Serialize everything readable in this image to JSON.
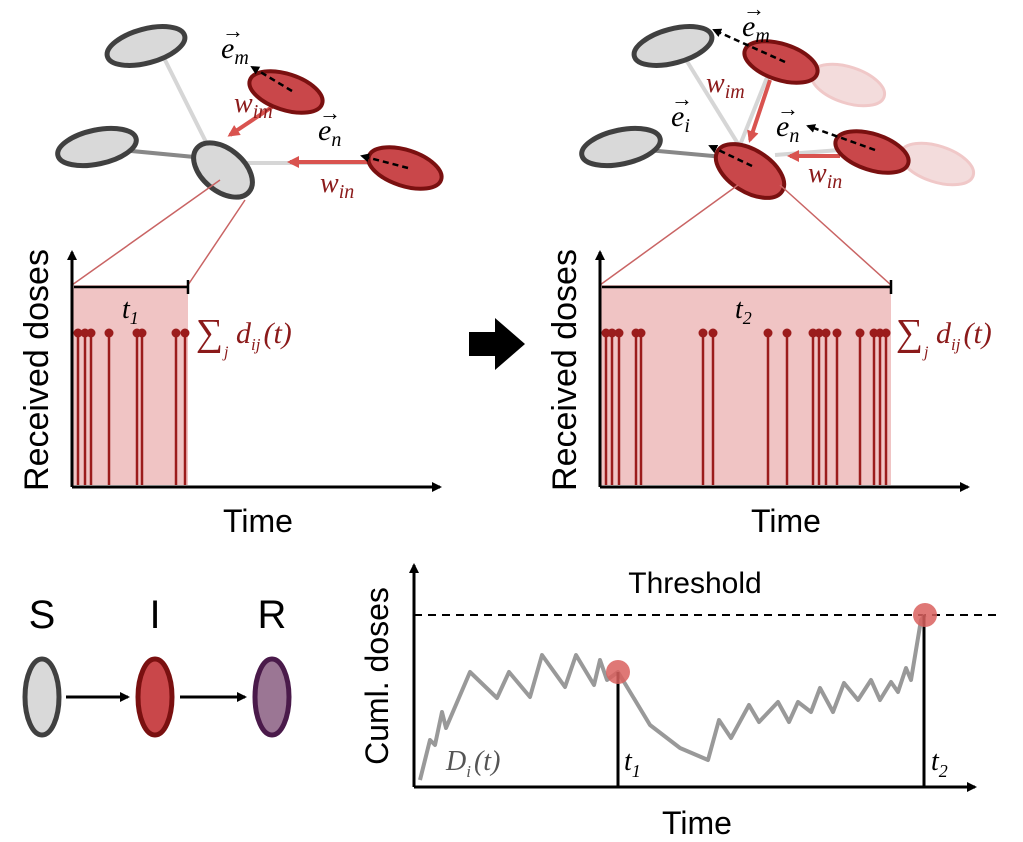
{
  "network": {
    "e_m": "e",
    "e_m_sub": "m",
    "e_n": "e",
    "e_n_sub": "n",
    "e_i": "e",
    "e_i_sub": "i",
    "w": "w",
    "w_im_sub": "im",
    "w_in_sub": "in"
  },
  "dose_plot_left": {
    "ylabel": "Received doses",
    "xlabel": "Time",
    "window_label": "t",
    "window_sub": "1",
    "sum_label": "d",
    "sum_sub_j": "j",
    "sum_sub_ij": "ij",
    "sum_arg": "(t)"
  },
  "dose_plot_right": {
    "ylabel": "Received doses",
    "xlabel": "Time",
    "window_label": "t",
    "window_sub": "2",
    "sum_label": "d",
    "sum_sub_j": "j",
    "sum_sub_ij": "ij",
    "sum_arg": "(t)"
  },
  "sir": {
    "states": [
      {
        "label": "S",
        "fill": "#d9d9d9",
        "stroke": "#404040"
      },
      {
        "label": "I",
        "fill": "#c9474a",
        "stroke": "#7a1010"
      },
      {
        "label": "R",
        "fill": "#9b7694",
        "stroke": "#4a1a4a"
      }
    ]
  },
  "cumul_plot": {
    "ylabel": "Cuml. doses",
    "xlabel": "Time",
    "threshold_label": "Threshold",
    "curve_label": "D",
    "curve_sub": "i",
    "curve_arg": "(t)",
    "t1_label": "t",
    "t1_sub": "1",
    "t2_label": "t",
    "t2_sub": "2"
  },
  "colors": {
    "infected_fill": "#c9474a",
    "infected_stroke": "#7a1010",
    "susceptible_fill": "#d9d9d9",
    "susceptible_stroke": "#404040",
    "dose_shade": "#f0c4c4",
    "dose_line": "#9b1c1c",
    "edge_red": "#d9534f",
    "label_red": "#8b1a1a",
    "curve_gray": "#999999"
  }
}
